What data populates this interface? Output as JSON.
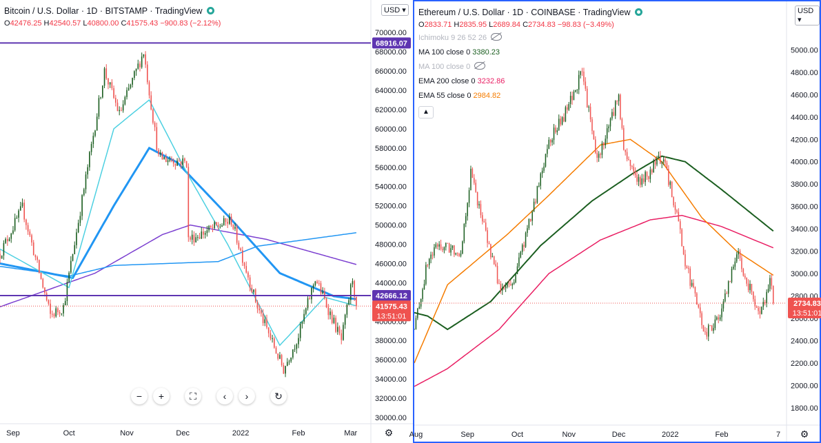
{
  "left": {
    "title": "Bitcoin / U.S. Dollar · 1D · BITSTAMP · TradingView",
    "ohlc": {
      "o": "42476.25",
      "h": "42540.57",
      "l": "40800.00",
      "c": "41575.43",
      "chg": "−900.83 (−2.12%)"
    },
    "currency": "USD",
    "y_labels": [
      "70000.00",
      "68000.00",
      "66000.00",
      "64000.00",
      "62000.00",
      "60000.00",
      "58000.00",
      "56000.00",
      "54000.00",
      "52000.00",
      "50000.00",
      "48000.00",
      "46000.00",
      "44000.00",
      "42000.00",
      "40000.00",
      "38000.00",
      "36000.00",
      "34000.00",
      "32000.00",
      "30000.00"
    ],
    "x_labels": [
      "Sep",
      "Oct",
      "Nov",
      "Dec",
      "2022",
      "Feb",
      "Mar"
    ],
    "line_tags": [
      "68916.07",
      "42666.12"
    ],
    "price_tag": "41575.43",
    "countdown": "13:51:01",
    "nav_icons": [
      "minus-icon",
      "plus-icon",
      "fullscreen-icon",
      "chevron-left-icon",
      "chevron-right-icon",
      "reset-icon"
    ],
    "nav_glyphs": [
      "−",
      "+",
      "⛶",
      "‹",
      "›",
      "↻"
    ]
  },
  "right": {
    "title": "Ethereum / U.S. Dollar · 1D · COINBASE · TradingView",
    "ohlc": {
      "o": "2833.71",
      "h": "2835.95",
      "l": "2689.84",
      "c": "2734.83",
      "chg": "−98.83 (−3.49%)"
    },
    "currency": "USD",
    "indicators": {
      "ichimoku": "Ichimoku 9 26 52 26",
      "ma100_label": "MA 100 close 0",
      "ma100_value": "3380.23",
      "ma100b_label": "MA 100 close 0",
      "ema200_label": "EMA 200 close 0",
      "ema200_value": "3232.86",
      "ema55_label": "EMA 55 close 0",
      "ema55_value": "2984.82"
    },
    "y_labels": [
      "5000.00",
      "4800.00",
      "4600.00",
      "4400.00",
      "4200.00",
      "4000.00",
      "3800.00",
      "3600.00",
      "3400.00",
      "3200.00",
      "3000.00",
      "2800.00",
      "2600.00",
      "2400.00",
      "2200.00",
      "2000.00",
      "1800.00"
    ],
    "x_labels": [
      "Aug",
      "Sep",
      "Oct",
      "Nov",
      "Dec",
      "2022",
      "Feb",
      "7"
    ],
    "price_tag": "2734.83",
    "countdown": "13:51:01"
  },
  "colors": {
    "up": "#26a69a",
    "down": "#f23645",
    "candle_up_fill": "#1b5e20",
    "candle_down_fill": "#ef5350",
    "purple": "#7b3fd0",
    "blue": "#2196f3",
    "cyan": "#4dd0e1",
    "darkgreen": "#1b5e20",
    "crimson": "#e91e63",
    "orange": "#f57c00"
  },
  "chart_data": [
    {
      "type": "candlestick",
      "title": "Bitcoin / U.S. Dollar · 1D · BITSTAMP",
      "ylim": [
        30000,
        70800
      ],
      "x_range": [
        "2021-08-25",
        "2022-03-07"
      ],
      "horizontal_lines": [
        68916.07,
        42666.12
      ],
      "last_close": 41575.43,
      "anchors": [
        {
          "date": "2021-08-25",
          "price": 47000
        },
        {
          "date": "2021-09-06",
          "price": 51800
        },
        {
          "date": "2021-09-21",
          "price": 40600
        },
        {
          "date": "2021-09-28",
          "price": 41500
        },
        {
          "date": "2021-10-20",
          "price": 66000
        },
        {
          "date": "2021-10-28",
          "price": 61500
        },
        {
          "date": "2021-11-10",
          "price": 68000
        },
        {
          "date": "2021-11-18",
          "price": 57000
        },
        {
          "date": "2021-12-03",
          "price": 56500
        },
        {
          "date": "2021-12-04",
          "price": 48500
        },
        {
          "date": "2021-12-27",
          "price": 50500
        },
        {
          "date": "2022-01-10",
          "price": 41500
        },
        {
          "date": "2022-01-24",
          "price": 35000
        },
        {
          "date": "2022-02-01",
          "price": 38500
        },
        {
          "date": "2022-02-10",
          "price": 44500
        },
        {
          "date": "2022-02-24",
          "price": 38000
        },
        {
          "date": "2022-03-02",
          "price": 44500
        },
        {
          "date": "2022-03-04",
          "price": 41575
        }
      ],
      "overlays": [
        {
          "name": "purple",
          "color": "#7b3fd0",
          "points": [
            [
              "2021-08-25",
              41500
            ],
            [
              "2021-10-15",
              45000
            ],
            [
              "2021-11-20",
              49000
            ],
            [
              "2021-12-05",
              50000
            ],
            [
              "2022-01-15",
              48500
            ],
            [
              "2022-03-04",
              45900
            ]
          ]
        },
        {
          "name": "blue",
          "color": "#2196f3",
          "points": [
            [
              "2021-08-25",
              45700
            ],
            [
              "2021-10-01",
              44700
            ],
            [
              "2021-10-25",
              45800
            ],
            [
              "2021-12-20",
              46200
            ],
            [
              "2022-01-10",
              47800
            ],
            [
              "2022-03-04",
              49200
            ]
          ]
        },
        {
          "name": "blue-thick",
          "color": "#2196f3",
          "points": [
            [
              "2021-08-25",
              46000
            ],
            [
              "2021-10-03",
              44500
            ],
            [
              "2021-10-25",
              52000
            ],
            [
              "2021-11-13",
              58000
            ],
            [
              "2021-11-28",
              56500
            ],
            [
              "2021-12-25",
              51000
            ],
            [
              "2022-01-22",
              45000
            ],
            [
              "2022-02-20",
              42600
            ],
            [
              "2022-03-04",
              42300
            ]
          ]
        },
        {
          "name": "cyan",
          "color": "#4dd0e1",
          "points": [
            [
              "2021-08-25",
              47500
            ],
            [
              "2021-10-01",
              43500
            ],
            [
              "2021-10-25",
              60000
            ],
            [
              "2021-11-13",
              63000
            ],
            [
              "2021-12-03",
              55500
            ],
            [
              "2021-12-25",
              48000
            ],
            [
              "2022-01-22",
              37500
            ],
            [
              "2022-02-15",
              42500
            ],
            [
              "2022-03-04",
              41600
            ]
          ]
        }
      ]
    },
    {
      "type": "candlestick",
      "title": "Ethereum / U.S. Dollar · 1D · COINBASE",
      "ylim": [
        1700,
        5200
      ],
      "x_range": [
        "2021-07-31",
        "2022-03-07"
      ],
      "last_close": 2734.83,
      "anchors": [
        {
          "date": "2021-07-31",
          "price": 2500
        },
        {
          "date": "2021-08-08",
          "price": 3100
        },
        {
          "date": "2021-08-14",
          "price": 3250
        },
        {
          "date": "2021-08-28",
          "price": 3200
        },
        {
          "date": "2021-09-03",
          "price": 3900
        },
        {
          "date": "2021-09-13",
          "price": 3300
        },
        {
          "date": "2021-09-21",
          "price": 2850
        },
        {
          "date": "2021-09-28",
          "price": 2900
        },
        {
          "date": "2021-10-11",
          "price": 3600
        },
        {
          "date": "2021-10-20",
          "price": 4200
        },
        {
          "date": "2021-10-29",
          "price": 4400
        },
        {
          "date": "2021-11-09",
          "price": 4800
        },
        {
          "date": "2021-11-18",
          "price": 4000
        },
        {
          "date": "2021-12-01",
          "price": 4600
        },
        {
          "date": "2021-12-04",
          "price": 4100
        },
        {
          "date": "2021-12-14",
          "price": 3800
        },
        {
          "date": "2021-12-27",
          "price": 4050
        },
        {
          "date": "2022-01-05",
          "price": 3550
        },
        {
          "date": "2022-01-10",
          "price": 3100
        },
        {
          "date": "2022-01-22",
          "price": 2450
        },
        {
          "date": "2022-02-01",
          "price": 2650
        },
        {
          "date": "2022-02-10",
          "price": 3200
        },
        {
          "date": "2022-02-24",
          "price": 2600
        },
        {
          "date": "2022-03-02",
          "price": 2950
        },
        {
          "date": "2022-03-04",
          "price": 2735
        }
      ],
      "overlays": [
        {
          "name": "MA 100 close 0",
          "color": "#1b5e20",
          "points": [
            [
              "2021-07-31",
              2650
            ],
            [
              "2021-08-08",
              2620
            ],
            [
              "2021-08-20",
              2500
            ],
            [
              "2021-09-15",
              2750
            ],
            [
              "2021-10-15",
              3250
            ],
            [
              "2021-11-15",
              3650
            ],
            [
              "2021-12-10",
              3900
            ],
            [
              "2021-12-27",
              4050
            ],
            [
              "2022-01-10",
              4000
            ],
            [
              "2022-02-01",
              3750
            ],
            [
              "2022-03-04",
              3380
            ]
          ]
        },
        {
          "name": "EMA 200 close 0",
          "color": "#e91e63",
          "points": [
            [
              "2021-07-31",
              1990
            ],
            [
              "2021-08-20",
              2150
            ],
            [
              "2021-09-20",
              2500
            ],
            [
              "2021-10-20",
              3000
            ],
            [
              "2021-11-20",
              3300
            ],
            [
              "2021-12-20",
              3480
            ],
            [
              "2022-01-08",
              3520
            ],
            [
              "2022-02-01",
              3420
            ],
            [
              "2022-03-04",
              3230
            ]
          ]
        },
        {
          "name": "EMA 55 close 0",
          "color": "#f57c00",
          "points": [
            [
              "2021-07-31",
              2200
            ],
            [
              "2021-08-20",
              2900
            ],
            [
              "2021-09-25",
              3350
            ],
            [
              "2021-10-20",
              3700
            ],
            [
              "2021-11-20",
              4150
            ],
            [
              "2021-12-08",
              4200
            ],
            [
              "2021-12-27",
              4000
            ],
            [
              "2022-01-20",
              3500
            ],
            [
              "2022-02-10",
              3200
            ],
            [
              "2022-03-04",
              2985
            ]
          ]
        }
      ]
    }
  ]
}
